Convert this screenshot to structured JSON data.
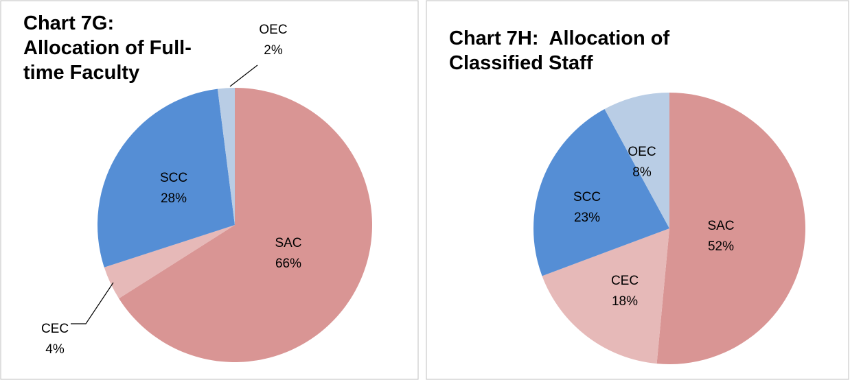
{
  "chart_data": [
    {
      "type": "pie",
      "title": "Chart 7G: Allocation of Full-time Faculty",
      "categories": [
        "SAC",
        "CEC",
        "SCC",
        "OEC"
      ],
      "values": [
        66,
        4,
        28,
        2
      ],
      "value_labels": [
        "66%",
        "4%",
        "28%",
        "2%"
      ],
      "colors": [
        "#d99594",
        "#e6b9b8",
        "#558ed5",
        "#b9cde5"
      ]
    },
    {
      "type": "pie",
      "title": "Chart 7H:  Allocation of Classified Staff",
      "categories": [
        "SAC",
        "CEC",
        "SCC",
        "OEC"
      ],
      "values": [
        52,
        18,
        23,
        8
      ],
      "value_labels": [
        "52%",
        "18%",
        "23%",
        "8%"
      ],
      "colors": [
        "#d99594",
        "#e6b9b8",
        "#558ed5",
        "#b9cde5"
      ]
    }
  ]
}
